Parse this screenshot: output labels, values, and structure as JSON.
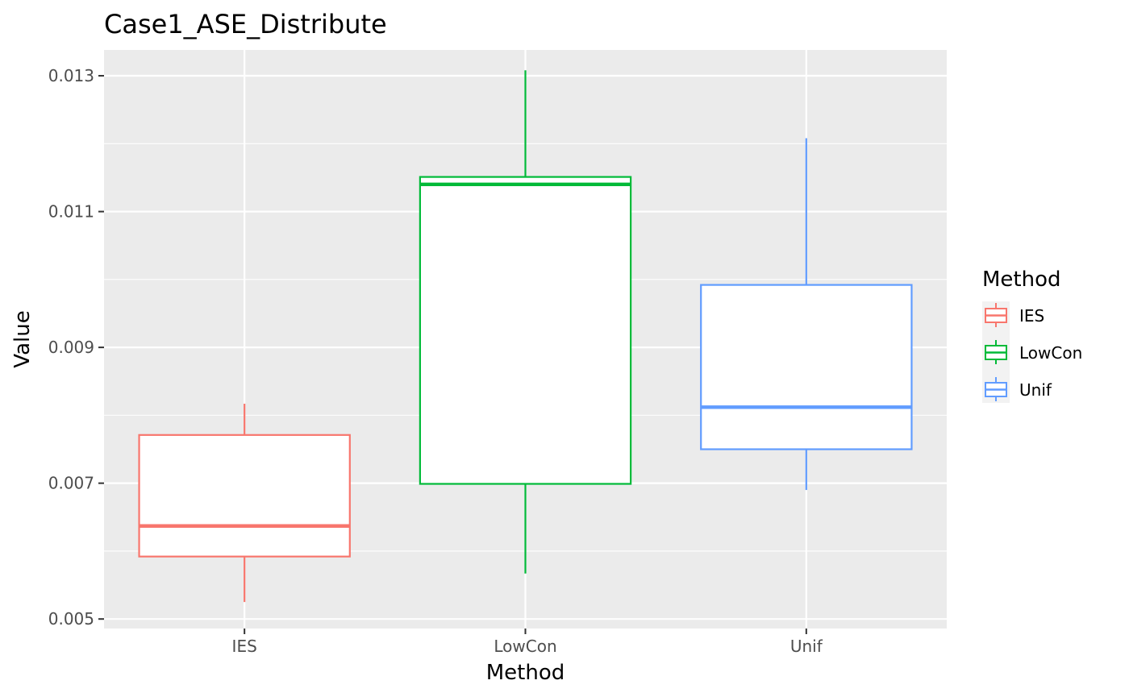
{
  "chart_data": {
    "type": "boxplot",
    "title": "Case1_ASE_Distribute",
    "xlabel": "Method",
    "ylabel": "Value",
    "categories": [
      "IES",
      "LowCon",
      "Unif"
    ],
    "ylim": [
      0.00486,
      0.01338
    ],
    "yticks": [
      0.005,
      0.007,
      0.009,
      0.011,
      0.013
    ],
    "ytick_labels": [
      "0.005",
      "0.007",
      "0.009",
      "0.011",
      "0.013"
    ],
    "grid": true,
    "legend": {
      "title": "Method",
      "placement": "right",
      "entries": [
        "IES",
        "LowCon",
        "Unif"
      ]
    },
    "boxes": [
      {
        "name": "IES",
        "color": "#F8766D",
        "min": 0.00525,
        "q1": 0.00592,
        "median": 0.00637,
        "q3": 0.00771,
        "max": 0.00817
      },
      {
        "name": "LowCon",
        "color": "#00BA38",
        "min": 0.00567,
        "q1": 0.00699,
        "median": 0.0114,
        "q3": 0.01151,
        "max": 0.01308
      },
      {
        "name": "Unif",
        "color": "#619CFF",
        "min": 0.0069,
        "q1": 0.0075,
        "median": 0.00812,
        "q3": 0.00992,
        "max": 0.01208
      }
    ],
    "colors": {
      "panel_background": "#EBEBEB",
      "grid_major": "#FFFFFF",
      "box_fill": "#FFFFFF"
    }
  }
}
